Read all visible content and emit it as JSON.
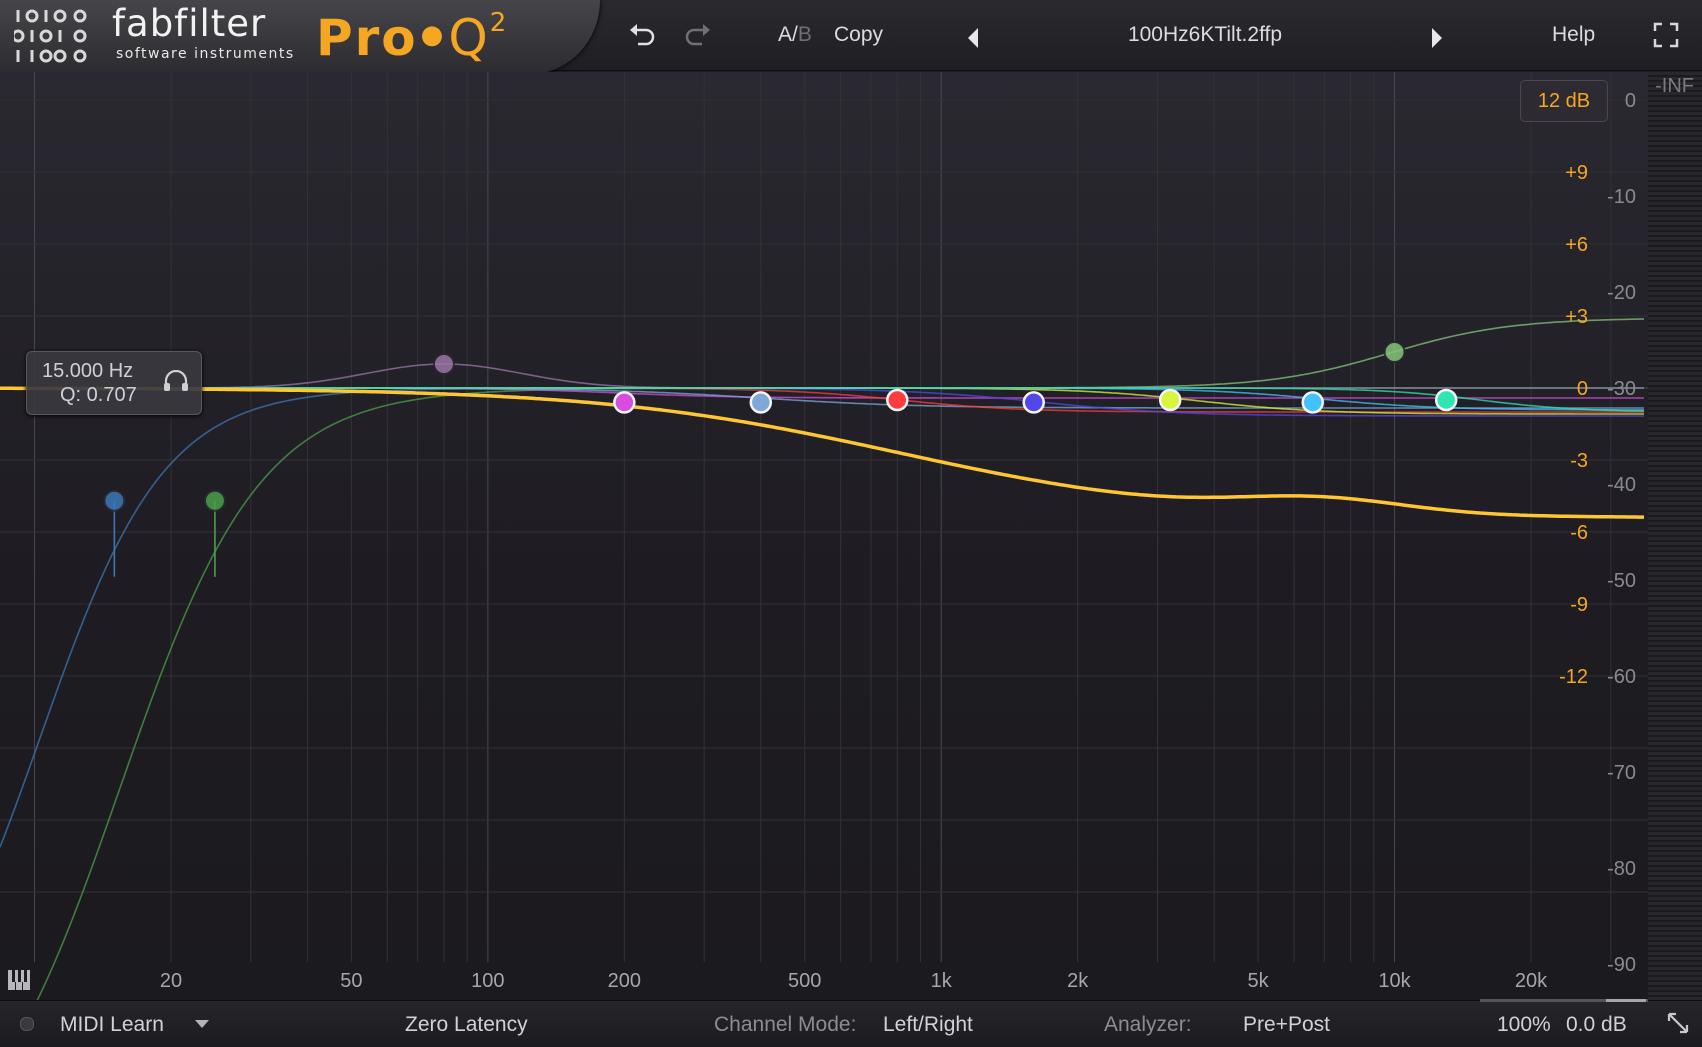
{
  "brand": {
    "name": "fabfilter",
    "subtitle": "software instruments",
    "product": "Pro",
    "product_q": "Q",
    "product_version": "2"
  },
  "toolbar": {
    "ab_a": "A/",
    "ab_b": "B",
    "copy": "Copy",
    "preset": "100Hz6KTilt.2ffp",
    "help": "Help"
  },
  "tooltip": {
    "freq": "15.000 Hz",
    "q": "Q: 0.707"
  },
  "range": "12 dB",
  "eq_scale": [
    "+9",
    "+6",
    "+3",
    "0",
    "-3",
    "-6",
    "-9",
    "-12"
  ],
  "db_scale": [
    "-INF",
    "0",
    "-10",
    "-20",
    "-30",
    "-40",
    "-50",
    "-60",
    "-70",
    "-80",
    "-90"
  ],
  "freq_scale": [
    "20",
    "50",
    "100",
    "200",
    "500",
    "1k",
    "2k",
    "5k",
    "10k",
    "20k"
  ],
  "footer": {
    "midi": "MIDI Learn",
    "latency": "Zero Latency",
    "channel_label": "Channel Mode:",
    "channel_value": "Left/Right",
    "analyzer_label": "Analyzer:",
    "analyzer_value": "Pre+Post",
    "zoom": "100%",
    "gain": "0.0 dB"
  },
  "colors": {
    "accent": "#f5a623",
    "master_curve": "#ffc633",
    "bands": [
      "#3b78b6",
      "#4aa04a",
      "#9a76a8",
      "#d84de0",
      "#7ea8d8",
      "#ff3b3b",
      "#5048e8",
      "#d7f53a",
      "#41c2ff",
      "#86c57a",
      "#2ee6b0"
    ]
  },
  "bands": [
    {
      "name": "band-1-low-cut",
      "freq_hz": 15,
      "gain_db": -4.7,
      "color": "#3b78b6"
    },
    {
      "name": "band-2-low-cut",
      "freq_hz": 25,
      "gain_db": -4.7,
      "color": "#4aa04a"
    },
    {
      "name": "band-3-low-shelf",
      "freq_hz": 80,
      "gain_db": 1.0,
      "color": "#9a76a8"
    },
    {
      "name": "band-4",
      "freq_hz": 200,
      "gain_db": -0.6,
      "color": "#d84de0"
    },
    {
      "name": "band-5",
      "freq_hz": 400,
      "gain_db": -0.6,
      "color": "#7ea8d8"
    },
    {
      "name": "band-6",
      "freq_hz": 800,
      "gain_db": -0.5,
      "color": "#ff3b3b"
    },
    {
      "name": "band-7",
      "freq_hz": 1600,
      "gain_db": -0.6,
      "color": "#5048e8"
    },
    {
      "name": "band-8",
      "freq_hz": 3200,
      "gain_db": -0.5,
      "color": "#d7f53a"
    },
    {
      "name": "band-9",
      "freq_hz": 6600,
      "gain_db": -0.6,
      "color": "#41c2ff"
    },
    {
      "name": "band-10-high-shelf",
      "freq_hz": 10000,
      "gain_db": 1.5,
      "color": "#86c57a"
    },
    {
      "name": "band-11",
      "freq_hz": 13000,
      "gain_db": -0.5,
      "color": "#2ee6b0"
    }
  ]
}
